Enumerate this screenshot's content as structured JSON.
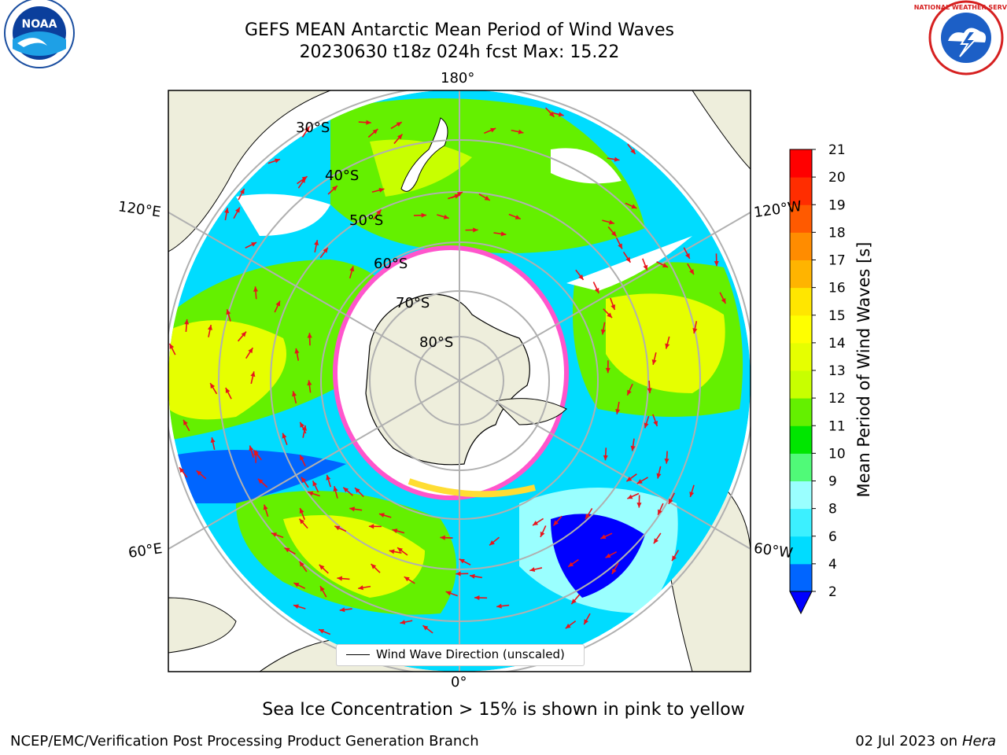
{
  "title": {
    "line1": "GEFS MEAN Antarctic Mean Period of Wind Waves",
    "line2": "20230630 t18z 024h fcst   Max: 15.22"
  },
  "logos": {
    "left": "NOAA",
    "right": "NATIONAL WEATHER SERVICE"
  },
  "map": {
    "lon_labels": {
      "top": "180°",
      "bottom": "0°",
      "upper_left": "120°E",
      "upper_right": "120°W",
      "lower_left": "60°E",
      "lower_right": "60°W"
    },
    "lat_labels": [
      "30°S",
      "40°S",
      "50°S",
      "60°S",
      "70°S",
      "80°S"
    ],
    "legend": "Wind Wave Direction (unscaled)",
    "colors": {
      "land": "#eeeedc",
      "ocean_nodata": "#ffffff",
      "grid": "#b0b0b0",
      "arrow": "#e8141c",
      "ice_pink": "#ff55cc",
      "ice_yellow": "#ffdd33"
    }
  },
  "colorbar": {
    "label": "Mean Period of Wind Waves [s]",
    "ticks": [
      "2",
      "4",
      "6",
      "8",
      "9",
      "10",
      "11",
      "12",
      "13",
      "14",
      "15",
      "16",
      "17",
      "18",
      "19",
      "20",
      "21"
    ],
    "bin_colors": [
      "#0065ff",
      "#00dcff",
      "#3cf0ff",
      "#9affff",
      "#50fa78",
      "#00e600",
      "#64f000",
      "#c8ff00",
      "#e6ff00",
      "#ffff00",
      "#ffe600",
      "#ffb400",
      "#ff8c00",
      "#ff5a00",
      "#ff2d00",
      "#ff0000"
    ],
    "extend_color": "#0000ff"
  },
  "note": "Sea Ice Concentration > 15% is shown in pink to yellow",
  "footer": {
    "left": "NCEP/EMC/Verification Post Processing Product Generation Branch",
    "right_date": "02 Jul 2023 on ",
    "right_host": "Hera"
  }
}
